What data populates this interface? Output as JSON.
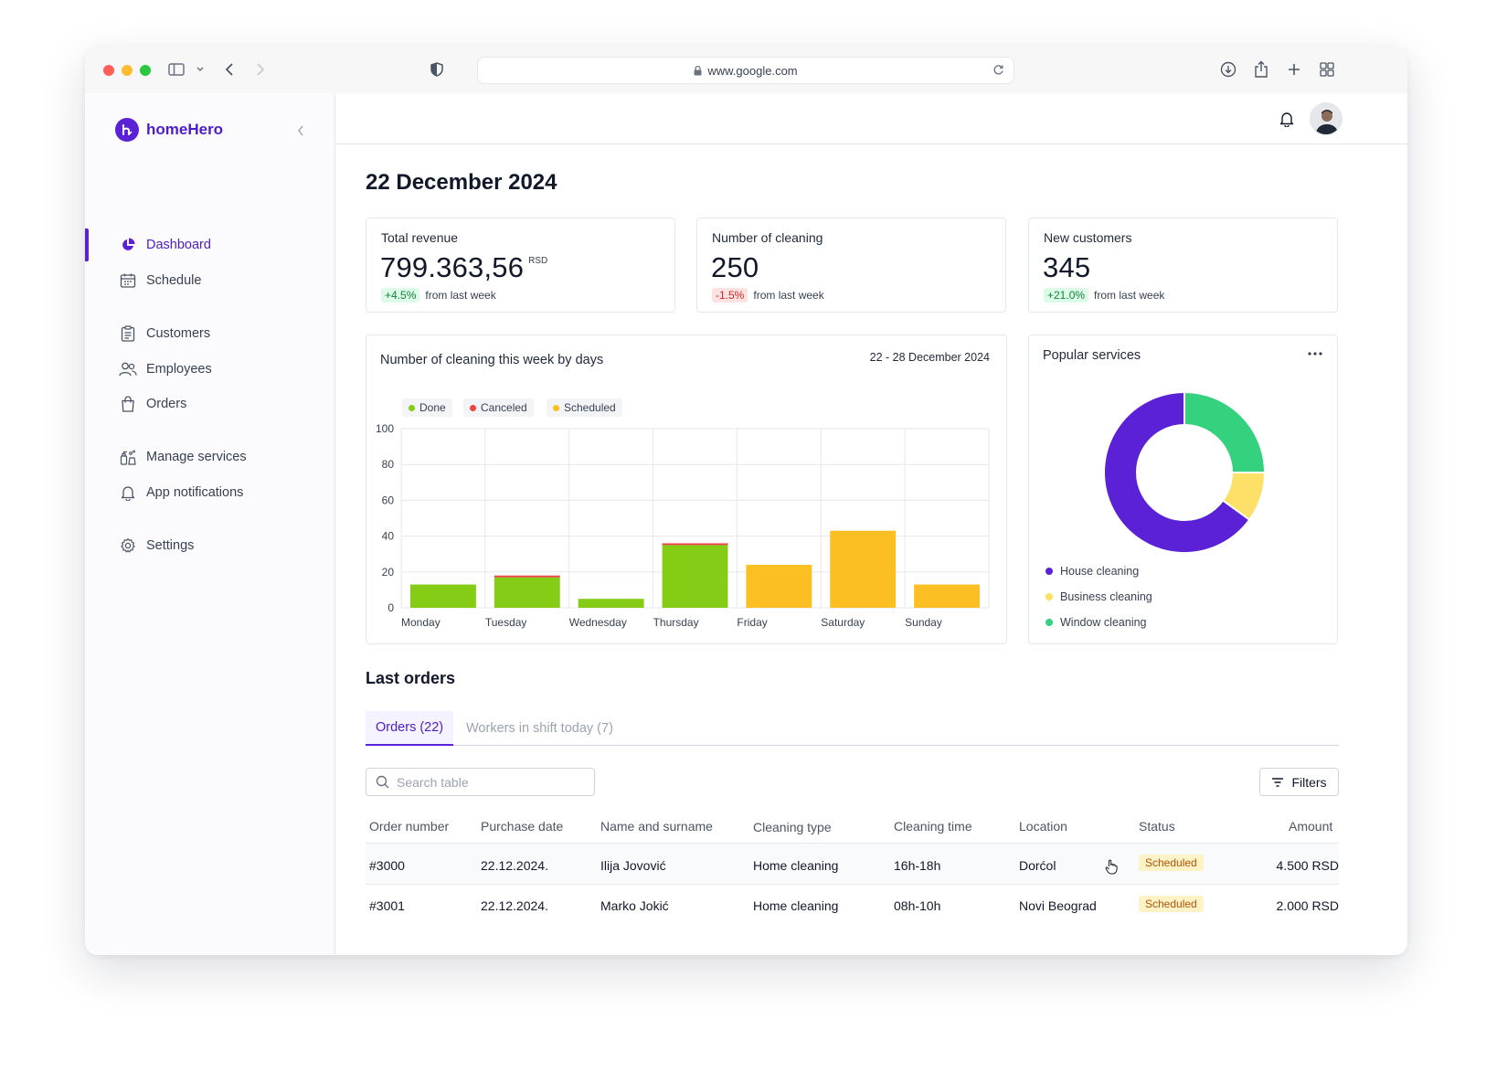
{
  "browser": {
    "url": "www.google.com"
  },
  "brand": {
    "name": "homeHero"
  },
  "sidebar": {
    "items": [
      {
        "label": "Dashboard"
      },
      {
        "label": "Schedule"
      },
      {
        "label": "Customers"
      },
      {
        "label": "Employees"
      },
      {
        "label": "Orders"
      },
      {
        "label": "Manage services"
      },
      {
        "label": "App notifications"
      },
      {
        "label": "Settings"
      }
    ],
    "active": "Dashboard"
  },
  "page": {
    "title": "22 December 2024"
  },
  "stats": [
    {
      "label": "Total revenue",
      "value": "799.363,56",
      "unit": "RSD",
      "change": "+4.5%",
      "direction": "up",
      "suffix": "from last week"
    },
    {
      "label": "Number of cleaning",
      "value": "250",
      "unit": "",
      "change": "-1.5%",
      "direction": "down",
      "suffix": "from last week"
    },
    {
      "label": "New customers",
      "value": "345",
      "unit": "",
      "change": "+21.0%",
      "direction": "up",
      "suffix": "from last week"
    }
  ],
  "weekly_chart": {
    "title": "Number of cleaning this week by days",
    "range": "22 - 28 December 2024",
    "legend": [
      {
        "name": "Done",
        "color": "#84cc16"
      },
      {
        "name": "Canceled",
        "color": "#ef4444"
      },
      {
        "name": "Scheduled",
        "color": "#fbbf24"
      }
    ]
  },
  "popular_services": {
    "title": "Popular services",
    "legend": [
      {
        "name": "House cleaning",
        "color": "#5b21d6"
      },
      {
        "name": "Business cleaning",
        "color": "#fde068"
      },
      {
        "name": "Window cleaning",
        "color": "#34d17f"
      }
    ]
  },
  "chart_data": [
    {
      "type": "bar",
      "stacked": true,
      "categories": [
        "Monday",
        "Tuesday",
        "Wednesday",
        "Thursday",
        "Friday",
        "Saturday",
        "Sunday"
      ],
      "series": [
        {
          "name": "Done",
          "color": "#84cc16",
          "values": [
            13,
            17,
            5,
            35,
            0,
            0,
            0
          ]
        },
        {
          "name": "Canceled",
          "color": "#ef4444",
          "values": [
            0,
            1,
            0,
            1,
            0,
            0,
            0
          ]
        },
        {
          "name": "Scheduled",
          "color": "#fbbf24",
          "values": [
            0,
            0,
            0,
            0,
            24,
            43,
            13
          ]
        }
      ],
      "yticks": [
        0,
        20,
        40,
        60,
        80,
        100
      ],
      "ylim": [
        0,
        100
      ],
      "grid": true,
      "legend_position": "top-left"
    },
    {
      "type": "pie",
      "donut": true,
      "labels": [
        "House cleaning",
        "Business cleaning",
        "Window cleaning"
      ],
      "values": [
        65,
        10,
        25
      ],
      "colors": [
        "#5b21d6",
        "#fde068",
        "#34d17f"
      ],
      "legend_position": "bottom-left"
    }
  ],
  "orders": {
    "section_title": "Last orders",
    "tabs": [
      {
        "label": "Orders (22)",
        "active": true
      },
      {
        "label": "Workers in shift today (7)",
        "active": false
      }
    ],
    "search_placeholder": "Search table",
    "filters_label": "Filters",
    "columns": [
      "Order number",
      "Purchase date",
      "Name and surname",
      "Cleaning type",
      "Cleaning time",
      "Location",
      "Status",
      "Amount"
    ],
    "rows": [
      {
        "order": "#3000",
        "date": "22.12.2024.",
        "name": "Ilija Jovović",
        "type": "Home cleaning",
        "time": "16h-18h",
        "location": "Dorćol",
        "status": "Scheduled",
        "amount": "4.500 RSD"
      },
      {
        "order": "#3001",
        "date": "22.12.2024.",
        "name": "Marko Jokić",
        "type": "Home cleaning",
        "time": "08h-10h",
        "location": "Novi Beograd",
        "status": "Scheduled",
        "amount": "2.000 RSD"
      }
    ]
  },
  "icons": {
    "status_colors": {
      "scheduled_bg": "#fef3c7",
      "scheduled_text": "#b45309"
    },
    "accent": "#5b21d6"
  }
}
